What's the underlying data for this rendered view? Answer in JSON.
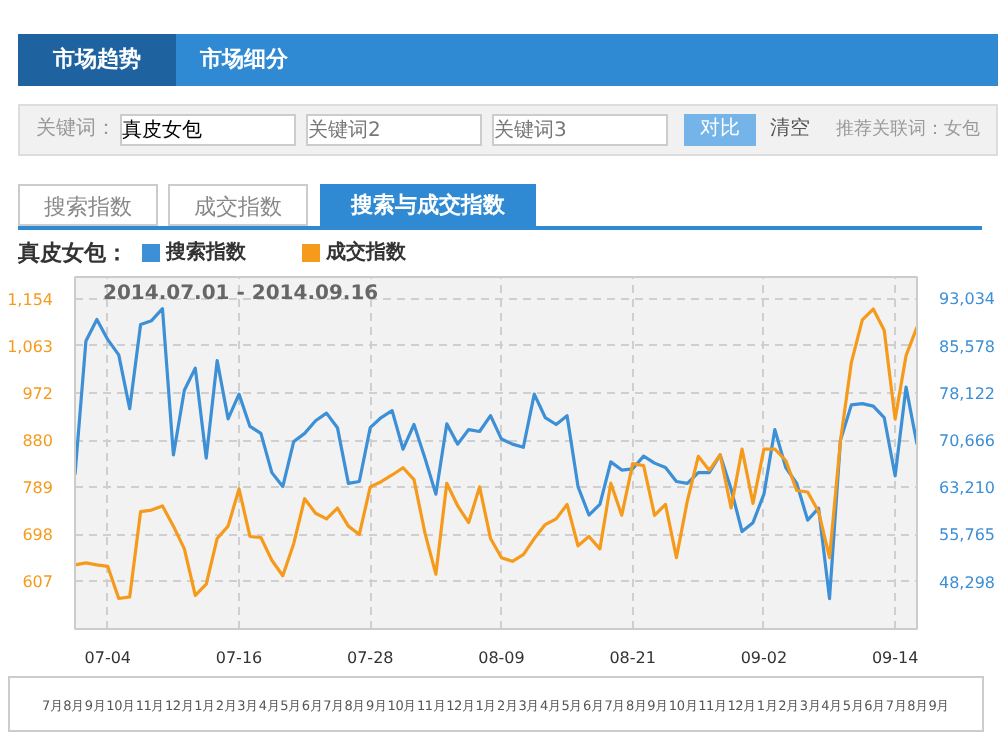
{
  "chart_data": {
    "type": "line",
    "legend_title": "真皮女包：",
    "legend": "top",
    "grid": true,
    "annotations": [
      "2014.07.01 - 2014.09.16",
      "市场趋势",
      "市场细分",
      "关键词：",
      "真皮女包",
      "关键词2",
      "关键词3",
      "对比",
      "清空",
      "推荐关联词：女包",
      "搜索指数",
      "成交指数",
      "搜索与成交指数",
      "7月8月9月10月11月12月1月2月3月4月5月6月7月8月9月10月11月12月1月2月3月4月5月6月7月8月9月10月11月12月1月2月3月4月5月6月7月8月9月"
    ],
    "x": [
      "2014-07-01",
      "2014-07-02",
      "2014-07-03",
      "2014-07-04",
      "2014-07-05",
      "2014-07-06",
      "2014-07-07",
      "2014-07-08",
      "2014-07-09",
      "2014-07-10",
      "2014-07-11",
      "2014-07-12",
      "2014-07-13",
      "2014-07-14",
      "2014-07-15",
      "2014-07-16",
      "2014-07-17",
      "2014-07-18",
      "2014-07-19",
      "2014-07-20",
      "2014-07-21",
      "2014-07-22",
      "2014-07-23",
      "2014-07-24",
      "2014-07-25",
      "2014-07-26",
      "2014-07-27",
      "2014-07-28",
      "2014-07-29",
      "2014-07-30",
      "2014-07-31",
      "2014-08-01",
      "2014-08-02",
      "2014-08-03",
      "2014-08-04",
      "2014-08-05",
      "2014-08-06",
      "2014-08-07",
      "2014-08-08",
      "2014-08-09",
      "2014-08-10",
      "2014-08-11",
      "2014-08-12",
      "2014-08-13",
      "2014-08-14",
      "2014-08-15",
      "2014-08-16",
      "2014-08-17",
      "2014-08-18",
      "2014-08-19",
      "2014-08-20",
      "2014-08-21",
      "2014-08-22",
      "2014-08-23",
      "2014-08-24",
      "2014-08-25",
      "2014-08-26",
      "2014-08-27",
      "2014-08-28",
      "2014-08-29",
      "2014-08-30",
      "2014-08-31",
      "2014-09-01",
      "2014-09-02",
      "2014-09-03",
      "2014-09-04",
      "2014-09-05",
      "2014-09-06",
      "2014-09-07",
      "2014-09-08",
      "2014-09-09",
      "2014-09-10",
      "2014-09-11",
      "2014-09-12",
      "2014-09-13",
      "2014-09-14",
      "2014-09-15",
      "2014-09-16"
    ],
    "xlim": [
      "2014-07-01",
      "2014-09-16"
    ],
    "xticks": [
      {
        "value": "2014-07-04",
        "label": "07-04"
      },
      {
        "value": "2014-07-16",
        "label": "07-16"
      },
      {
        "value": "2014-07-28",
        "label": "07-28"
      },
      {
        "value": "2014-08-09",
        "label": "08-09"
      },
      {
        "value": "2014-08-21",
        "label": "08-21"
      },
      {
        "value": "2014-09-02",
        "label": "09-02"
      },
      {
        "value": "2014-09-14",
        "label": "09-14"
      }
    ],
    "ylim": [
      515,
      1196
    ],
    "yticks": [
      607,
      698,
      789,
      880,
      972,
      {
        "value": 1063,
        "label": "1,063"
      },
      {
        "value": 1154,
        "label": "1,154"
      }
    ],
    "y2lim": [
      40800,
      96400
    ],
    "y2ticks": [
      {
        "value": 48298,
        "label": "48,298"
      },
      {
        "value": 55765,
        "label": "55,765"
      },
      {
        "value": 63210,
        "label": "63,210"
      },
      {
        "value": 70666,
        "label": "70,666"
      },
      {
        "value": 78122,
        "label": "78,122"
      },
      {
        "value": 85578,
        "label": "85,578"
      },
      {
        "value": 93034,
        "label": "93,034"
      }
    ],
    "series": [
      {
        "name": "搜索指数",
        "color": "#3d8fd6",
        "axis": "y2",
        "values": [
          65200,
          86300,
          89700,
          86500,
          84100,
          75600,
          88900,
          89500,
          91400,
          68300,
          78500,
          82000,
          67800,
          83200,
          74000,
          77900,
          72800,
          71700,
          65500,
          63300,
          70400,
          71700,
          73700,
          74900,
          72600,
          63800,
          64100,
          72600,
          74200,
          75300,
          69200,
          73100,
          67800,
          62100,
          73200,
          70000,
          72300,
          72000,
          74500,
          70800,
          70000,
          69500,
          77900,
          74200,
          73100,
          74500,
          63300,
          58800,
          60500,
          67200,
          65900,
          66100,
          68100,
          67000,
          66300,
          64100,
          63800,
          65500,
          65500,
          68300,
          62900,
          56200,
          57600,
          62100,
          72300,
          66300,
          63800,
          58000,
          59900,
          45600,
          70600,
          76200,
          76400,
          76000,
          74200,
          65000,
          79000,
          70000
        ]
      },
      {
        "name": "成交指数",
        "color": "#f59a1b",
        "values": [
          639,
          643,
          639,
          636,
          574,
          577,
          742,
          745,
          753,
          714,
          670,
          580,
          602,
          690,
          714,
          786,
          694,
          692,
          648,
          618,
          680,
          767,
          739,
          728,
          749,
          714,
          698,
          790,
          800,
          813,
          827,
          804,
          701,
          621,
          797,
          753,
          721,
          790,
          690,
          653,
          646,
          659,
          690,
          717,
          728,
          756,
          676,
          694,
          670,
          797,
          735,
          835,
          831,
          735,
          756,
          653,
          763,
          849,
          822,
          852,
          749,
          863,
          758,
          863,
          863,
          841,
          783,
          780,
          742,
          653,
          879,
          1031,
          1113,
          1134,
          1093,
          921,
          1044,
          1099
        ]
      }
    ]
  }
}
